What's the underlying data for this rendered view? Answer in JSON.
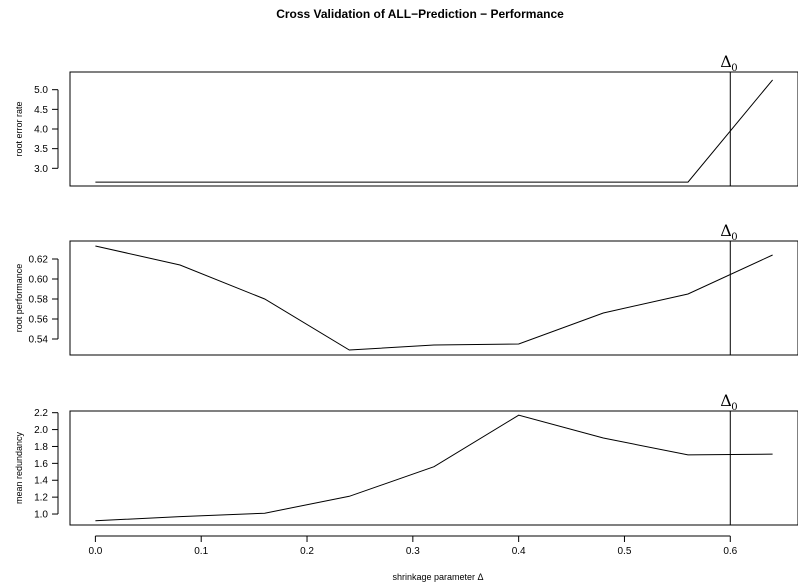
{
  "chart_data": {
    "type": "line",
    "title": "Cross Validation of ALL−Prediction − Performance",
    "xlabel": "shrinkage parameter Δ",
    "x": [
      0.0,
      0.08,
      0.16,
      0.24,
      0.32,
      0.4,
      0.48,
      0.56,
      0.64
    ],
    "xlim": [
      -0.024,
      0.664
    ],
    "xticks": [
      "0.0",
      "0.1",
      "0.2",
      "0.3",
      "0.4",
      "0.5",
      "0.6"
    ],
    "xtick_values": [
      0.0,
      0.1,
      0.2,
      0.3,
      0.4,
      0.5,
      0.6
    ],
    "marker": {
      "label": "Δ",
      "subscript": "0",
      "x": 0.6
    },
    "grid": false,
    "panels": [
      {
        "ylabel": "root error rate",
        "values": [
          2.65,
          2.65,
          2.65,
          2.65,
          2.65,
          2.65,
          2.65,
          2.65,
          5.25
        ],
        "ylim": [
          2.55,
          5.45
        ],
        "yticks": [
          "3.0",
          "3.5",
          "4.0",
          "4.5",
          "5.0"
        ],
        "ytick_values": [
          3.0,
          3.5,
          4.0,
          4.5,
          5.0
        ]
      },
      {
        "ylabel": "root performance",
        "values": [
          0.633,
          0.614,
          0.58,
          0.529,
          0.534,
          0.535,
          0.566,
          0.585,
          0.624
        ],
        "ylim": [
          0.524,
          0.638
        ],
        "yticks": [
          "0.54",
          "0.56",
          "0.58",
          "0.60",
          "0.62"
        ],
        "ytick_values": [
          0.54,
          0.56,
          0.58,
          0.6,
          0.62
        ]
      },
      {
        "ylabel": "mean redundancy",
        "values": [
          0.92,
          0.97,
          1.01,
          1.21,
          1.56,
          2.17,
          1.9,
          1.7,
          1.71
        ],
        "ylim": [
          0.87,
          2.22
        ],
        "yticks": [
          "1.0",
          "1.2",
          "1.4",
          "1.6",
          "1.8",
          "2.0",
          "2.2"
        ],
        "ytick_values": [
          1.0,
          1.2,
          1.4,
          1.6,
          1.8,
          2.0,
          2.2
        ]
      }
    ]
  }
}
